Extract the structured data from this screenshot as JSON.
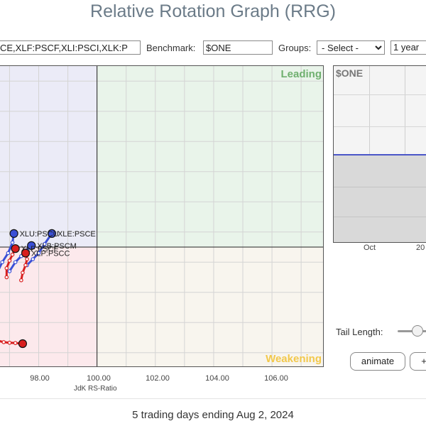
{
  "page": {
    "title": "Relative Rotation Graph (RRG)",
    "footer": "5 trading days ending Aug 2, 2024"
  },
  "toolbar": {
    "symbols_value": "CE,XLF:PSCF,XLI:PSCI,XLK:P",
    "benchmark_label": "Benchmark:",
    "benchmark_value": "$ONE",
    "groups_label": "Groups:",
    "groups_selected": "- Select -",
    "range_value": "1 year"
  },
  "chart_data": {
    "type": "scatter",
    "xlabel": "JdK RS-Ratio",
    "x_ticks": [
      "98.00",
      "100.00",
      "102.00",
      "104.00",
      "106.00"
    ],
    "xlim": [
      96.6,
      107.8
    ],
    "ylim": [
      96.0,
      106.0
    ],
    "center": [
      100,
      100
    ],
    "quadrants": {
      "leading": "Leading",
      "weakening": "Weakening"
    },
    "colors": {
      "leading": "#e9f4ea",
      "weakening": "#f8f5ee",
      "lagging": "#fce9ec",
      "improving": "#ebebf7",
      "blue": "#3a4fd6",
      "red": "#d81e1e",
      "grid": "#d4d4d4"
    },
    "series": [
      {
        "name": "XLE:PSCE",
        "color": "#3a4fd6",
        "x": [
          97.6,
          97.8,
          98.0,
          98.2,
          98.45
        ],
        "y": [
          99.4,
          99.6,
          99.8,
          100.1,
          100.45
        ]
      },
      {
        "name": "XLU:PSCU",
        "color": "#3a4fd6",
        "x": [
          96.55,
          96.75,
          96.95,
          97.1,
          97.15
        ],
        "y": [
          99.1,
          99.5,
          99.8,
          100.15,
          100.45
        ]
      },
      {
        "name": "XLB:PSCM",
        "color": "#3a4fd6",
        "x": [
          97.0,
          97.2,
          97.4,
          97.6,
          97.75
        ],
        "y": [
          99.2,
          99.5,
          99.7,
          99.9,
          100.05
        ]
      },
      {
        "name": "XLF:PSCF",
        "color": "#d81e1e",
        "x": [
          96.9,
          96.9,
          97.0,
          97.1,
          97.2
        ],
        "y": [
          99.0,
          99.3,
          99.55,
          99.75,
          99.95
        ]
      },
      {
        "name": "XLP:PSCC",
        "color": "#d81e1e",
        "x": [
          97.4,
          97.45,
          97.55,
          97.6,
          97.55
        ],
        "y": [
          98.9,
          99.15,
          99.4,
          99.6,
          99.8
        ]
      },
      {
        "name": "",
        "color": "#d81e1e",
        "x": [
          96.6,
          96.8,
          97.0,
          97.2,
          97.45
        ],
        "y": [
          96.9,
          96.85,
          96.83,
          96.82,
          96.8
        ]
      }
    ]
  },
  "benchmark_panel": {
    "title": "$ONE",
    "axis_labels": [
      "Oct",
      "20"
    ]
  },
  "controls": {
    "tail_length_label": "Tail Length:",
    "tail_length_level": 0.35,
    "animate_label": "animate",
    "extra_label": "+"
  }
}
